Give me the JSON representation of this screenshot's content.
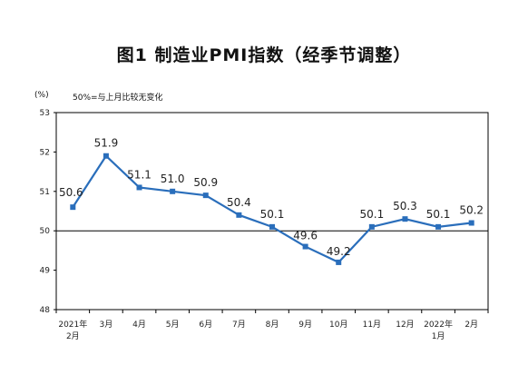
{
  "chart_data": {
    "type": "line",
    "title": "图1 制造业PMI指数（经季节调整）",
    "ylabel": "(%)",
    "note": "50%=与上月比较无变化",
    "ylim": [
      48,
      53
    ],
    "yticks": [
      "53",
      "52",
      "51",
      "50",
      "49",
      "48"
    ],
    "reference_line": 50,
    "categories": [
      [
        "2021年",
        "2月"
      ],
      [
        "3月"
      ],
      [
        "4月"
      ],
      [
        "5月"
      ],
      [
        "6月"
      ],
      [
        "7月"
      ],
      [
        "8月"
      ],
      [
        "9月"
      ],
      [
        "10月"
      ],
      [
        "11月"
      ],
      [
        "12月"
      ],
      [
        "2022年",
        "1月"
      ],
      [
        "2月"
      ]
    ],
    "values": [
      50.6,
      51.9,
      51.1,
      51.0,
      50.9,
      50.4,
      50.1,
      49.6,
      49.2,
      50.1,
      50.3,
      50.1,
      50.2
    ],
    "value_labels": [
      "50.6",
      "51.9",
      "51.1",
      "51.0",
      "50.9",
      "50.4",
      "50.1",
      "49.6",
      "49.2",
      "50.1",
      "50.3",
      "50.1",
      "50.2"
    ],
    "grid": false,
    "legend": "none",
    "colors": {
      "line": "#2a6ebb",
      "axis": "#000000"
    }
  }
}
